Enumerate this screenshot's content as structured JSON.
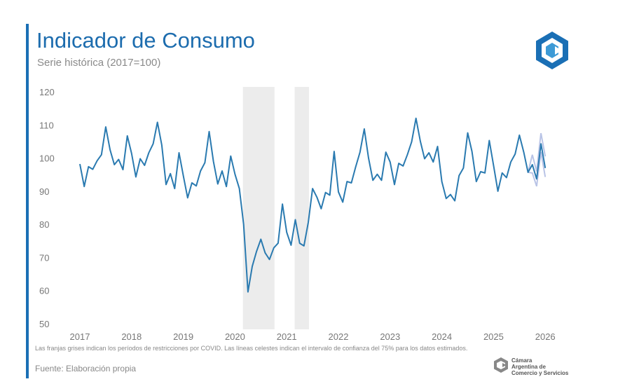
{
  "header": {
    "title": "Indicador de Consumo",
    "subtitle": "Serie histórica (2017=100)"
  },
  "footer": {
    "note": "Las franjas grises indican los períodos de restricciones por COVID. Las líneas celestes indican el intervalo de confianza del 75% para los datos estimados.",
    "source": "Fuente: Elaboración propia",
    "org_name": [
      "Cámara",
      "Argentina de",
      "Comercio y Servicios"
    ]
  },
  "colors": {
    "accent": "#1a6fb5",
    "line": "#2a7ab0",
    "band": "#ececec",
    "ci": "#b9c4e6"
  },
  "chart_data": {
    "type": "line",
    "title": "Indicador de Consumo",
    "subtitle": "Serie histórica (2017=100)",
    "frequency": "monthly",
    "start": "2017-01",
    "ylim": [
      50,
      120
    ],
    "yticks": [
      50,
      60,
      70,
      80,
      90,
      100,
      110,
      120
    ],
    "xticks": [
      "2017",
      "2018",
      "2019",
      "2020",
      "2021",
      "2022",
      "2023",
      "2024",
      "2025",
      "2026"
    ],
    "grid": false,
    "values": [
      98.2,
      91.4,
      97.4,
      96.6,
      99.2,
      101,
      109.4,
      102.5,
      98,
      99.6,
      96.5,
      106.7,
      101.4,
      94.3,
      99.8,
      97.8,
      101.6,
      104.3,
      110.8,
      103.9,
      92,
      95.3,
      90.8,
      101.6,
      94.7,
      88,
      92.5,
      91.6,
      96.1,
      98.6,
      108,
      99,
      92.2,
      96.1,
      91.4,
      100.6,
      95.1,
      90.8,
      80,
      59.6,
      67.3,
      71.8,
      75.5,
      71.4,
      69.4,
      72.9,
      74.3,
      86.1,
      77.6,
      73.7,
      81.4,
      74.3,
      73.5,
      80.6,
      90.8,
      88.2,
      84.7,
      89.6,
      88.8,
      102,
      89.8,
      86.7,
      92.9,
      92.5,
      97.3,
      101.8,
      108.8,
      100,
      93.3,
      95.1,
      93.3,
      101.8,
      98.8,
      92,
      98.4,
      97.6,
      101,
      104.9,
      112,
      105.1,
      99.8,
      101.6,
      98.8,
      103.5,
      92.9,
      87.8,
      89,
      87.1,
      94.7,
      97,
      107.6,
      102,
      92.9,
      95.9,
      95.5,
      105.3,
      97.8,
      90,
      95.5,
      94.1,
      98.8,
      101.2,
      106.9,
      101.8,
      95.7,
      98,
      93.7,
      104.3,
      97
    ],
    "confidence_interval_75": {
      "months": [
        "2025-09",
        "2025-10",
        "2025-11",
        "2025-12",
        "2026-01"
      ],
      "lower": [
        95.7,
        95.5,
        91.5,
        101.8,
        94.3
      ],
      "upper": [
        95.7,
        101,
        96,
        107.5,
        100.5
      ]
    },
    "covid_restriction_periods": [
      [
        "2020-03",
        "2020-10"
      ],
      [
        "2021-03",
        "2021-06"
      ]
    ]
  }
}
